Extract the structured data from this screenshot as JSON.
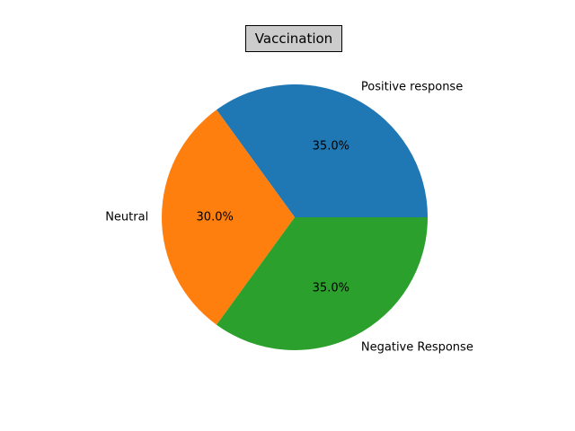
{
  "chart_data": {
    "type": "pie",
    "title": "Vaccination",
    "slices": [
      {
        "label": "Positive response",
        "value": 35.0,
        "pct_label": "35.0%",
        "color": "#1f77b4"
      },
      {
        "label": "Neutral",
        "value": 30.0,
        "pct_label": "30.0%",
        "color": "#ff7f0e"
      },
      {
        "label": "Negative Response",
        "value": 35.0,
        "pct_label": "35.0%",
        "color": "#2ca02c"
      }
    ],
    "start_angle": 0,
    "direction": "counterclockwise",
    "legend": "none"
  }
}
